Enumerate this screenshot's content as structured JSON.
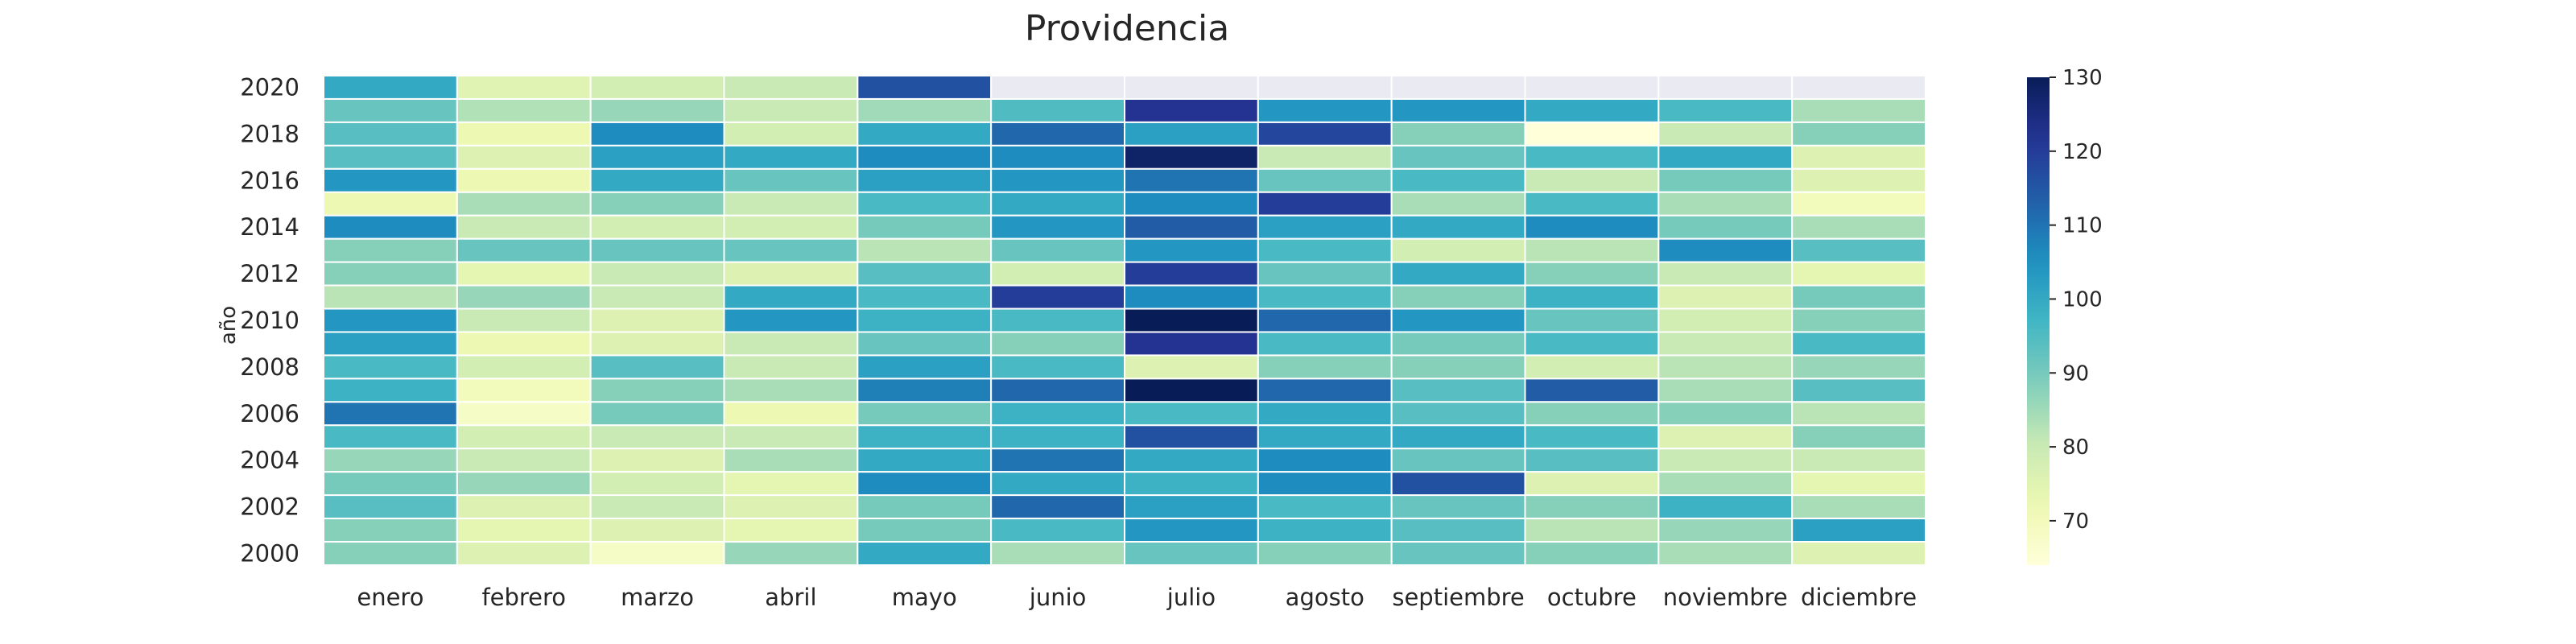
{
  "chart_data": {
    "type": "heatmap",
    "title": "Providencia",
    "xlabel": "",
    "ylabel": "año",
    "x_categories": [
      "enero",
      "febrero",
      "marzo",
      "abril",
      "mayo",
      "junio",
      "julio",
      "agosto",
      "septiembre",
      "octubre",
      "noviembre",
      "diciembre"
    ],
    "y_categories": [
      "2020",
      "2019",
      "2018",
      "2017",
      "2016",
      "2015",
      "2014",
      "2013",
      "2012",
      "2011",
      "2010",
      "2009",
      "2008",
      "2007",
      "2006",
      "2005",
      "2004",
      "2003",
      "2002",
      "2001",
      "2000"
    ],
    "y_tick_labels": [
      "2020",
      "",
      "2018",
      "",
      "2016",
      "",
      "2014",
      "",
      "2012",
      "",
      "2010",
      "",
      "2008",
      "",
      "2006",
      "",
      "2004",
      "",
      "2002",
      "",
      "2000"
    ],
    "values": [
      [
        100,
        75,
        78,
        80,
        116,
        null,
        null,
        null,
        null,
        null,
        null,
        null
      ],
      [
        92,
        83,
        86,
        80,
        85,
        95,
        122,
        104,
        104,
        100,
        96,
        84
      ],
      [
        94,
        72,
        106,
        78,
        100,
        112,
        102,
        118,
        88,
        62,
        80,
        88
      ],
      [
        94,
        76,
        102,
        100,
        106,
        106,
        128,
        80,
        92,
        96,
        100,
        76
      ],
      [
        104,
        72,
        100,
        92,
        102,
        104,
        110,
        92,
        96,
        80,
        90,
        76
      ],
      [
        72,
        84,
        88,
        80,
        96,
        100,
        106,
        120,
        84,
        96,
        84,
        70
      ],
      [
        106,
        80,
        78,
        78,
        90,
        104,
        114,
        102,
        100,
        106,
        90,
        84
      ],
      [
        88,
        92,
        92,
        92,
        82,
        92,
        104,
        96,
        78,
        82,
        106,
        94
      ],
      [
        88,
        74,
        80,
        76,
        94,
        78,
        120,
        92,
        100,
        88,
        80,
        74
      ],
      [
        82,
        86,
        80,
        100,
        96,
        120,
        106,
        96,
        88,
        98,
        76,
        90
      ],
      [
        104,
        80,
        76,
        104,
        98,
        96,
        130,
        112,
        104,
        92,
        78,
        88
      ],
      [
        102,
        72,
        76,
        80,
        92,
        88,
        122,
        96,
        90,
        96,
        80,
        96
      ],
      [
        96,
        78,
        94,
        80,
        102,
        96,
        76,
        88,
        88,
        78,
        82,
        86
      ],
      [
        98,
        70,
        88,
        84,
        108,
        112,
        130,
        112,
        94,
        114,
        84,
        94
      ],
      [
        110,
        68,
        90,
        72,
        90,
        98,
        96,
        100,
        94,
        88,
        88,
        82
      ],
      [
        96,
        78,
        80,
        80,
        98,
        98,
        116,
        100,
        100,
        96,
        76,
        88
      ],
      [
        86,
        80,
        76,
        84,
        100,
        110,
        100,
        106,
        92,
        94,
        80,
        80
      ],
      [
        90,
        86,
        78,
        74,
        106,
        100,
        98,
        106,
        116,
        76,
        84,
        74
      ],
      [
        94,
        76,
        80,
        76,
        90,
        112,
        102,
        96,
        92,
        88,
        98,
        84
      ],
      [
        88,
        74,
        76,
        74,
        90,
        96,
        104,
        98,
        94,
        82,
        86,
        102
      ],
      [
        88,
        76,
        68,
        86,
        100,
        84,
        92,
        88,
        92,
        88,
        84,
        76
      ]
    ],
    "colorscale": "YlGnBu",
    "color_range": [
      64,
      130
    ],
    "colorbar_ticks": [
      70,
      80,
      90,
      100,
      110,
      120,
      130
    ],
    "missing_color": "#eaeaf2",
    "grid": false
  }
}
